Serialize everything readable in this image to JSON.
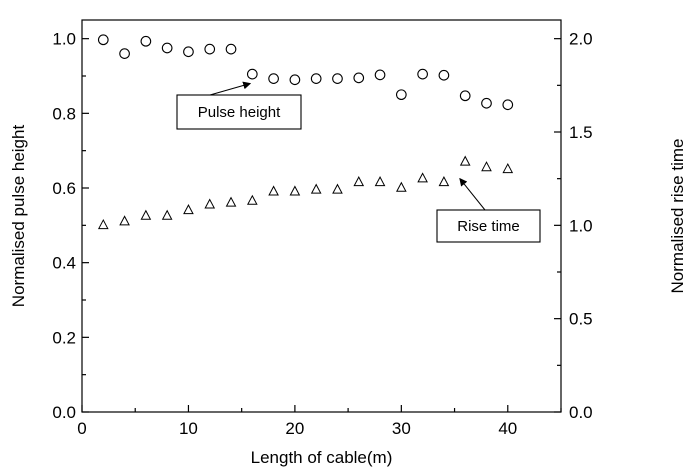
{
  "chart_data": {
    "type": "scatter",
    "xlabel": "Length of cable(m)",
    "ylabel_left": "Normalised pulse height",
    "ylabel_right": "Normalised rise time",
    "xlim": [
      0,
      45
    ],
    "ylim_left": [
      0,
      1.05
    ],
    "ylim_right": [
      0,
      2.1
    ],
    "x_ticks": [
      0,
      10,
      20,
      30,
      40
    ],
    "x_tick_labels": [
      "0",
      "10",
      "20",
      "30",
      "40"
    ],
    "y_left_ticks": [
      0,
      0.2,
      0.4,
      0.6,
      0.8,
      1.0
    ],
    "y_left_tick_labels": [
      "0.0",
      "0.2",
      "0.4",
      "0.6",
      "0.8",
      "1.0"
    ],
    "y_right_ticks": [
      0,
      0.5,
      1.0,
      1.5,
      2.0
    ],
    "y_right_tick_labels": [
      "0.0",
      "0.5",
      "1.0",
      "1.5",
      "2.0"
    ],
    "grid": false,
    "series": [
      {
        "name": "Pulse height",
        "axis": "left",
        "marker": "circle",
        "x": [
          2,
          4,
          6,
          8,
          10,
          12,
          14,
          16,
          18,
          20,
          22,
          24,
          26,
          28,
          30,
          32,
          34,
          36,
          38,
          40
        ],
        "y": [
          0.997,
          0.96,
          0.993,
          0.975,
          0.965,
          0.972,
          0.972,
          0.905,
          0.893,
          0.89,
          0.893,
          0.893,
          0.895,
          0.903,
          0.85,
          0.905,
          0.902,
          0.847,
          0.827,
          0.823
        ]
      },
      {
        "name": "Rise time",
        "axis": "right",
        "marker": "triangle",
        "x": [
          2,
          4,
          6,
          8,
          10,
          12,
          14,
          16,
          18,
          20,
          22,
          24,
          26,
          28,
          30,
          32,
          34,
          36,
          38,
          40
        ],
        "y": [
          1.0,
          1.02,
          1.05,
          1.05,
          1.08,
          1.11,
          1.12,
          1.13,
          1.18,
          1.18,
          1.19,
          1.19,
          1.23,
          1.23,
          1.2,
          1.25,
          1.23,
          1.34,
          1.31,
          1.3
        ]
      }
    ],
    "annotations": [
      {
        "text": "Pulse height",
        "target_series": "Pulse height",
        "target_x": 15.8,
        "target_y": 0.88
      },
      {
        "text": "Rise time",
        "target_series": "Rise time",
        "target_x": 35.5,
        "target_y": 1.25
      }
    ]
  }
}
